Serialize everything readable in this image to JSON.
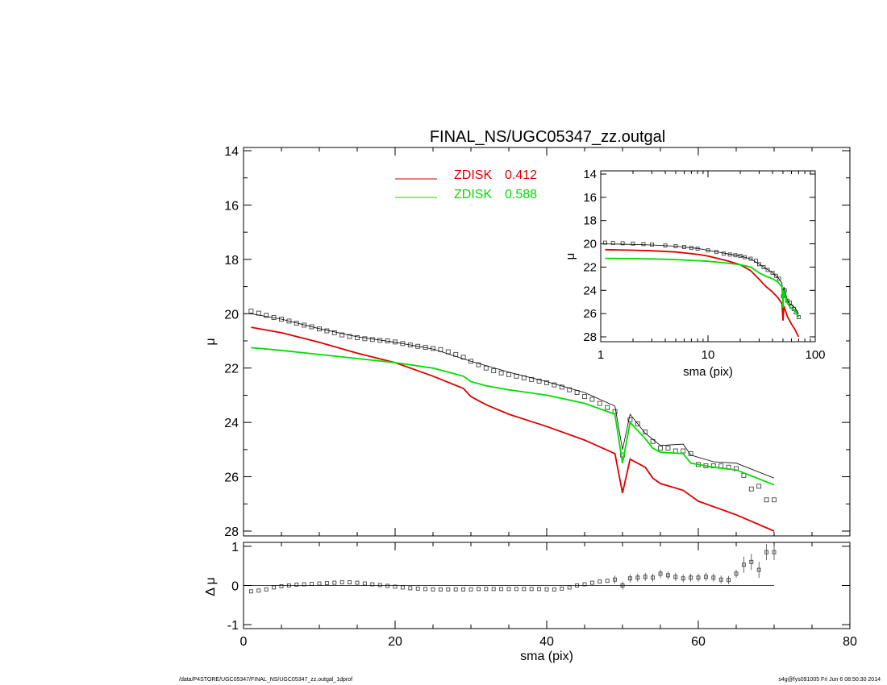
{
  "title": "FINAL_NS/UGC05347_zz.outgal",
  "footer_left": "/data/P4STORE/UGC05347/FINAL_NS/UGC05347_zz.outgal_1dprof",
  "footer_right": "s4g@fys091005  Fri Jun  6 08:50:30 2014",
  "legend": [
    {
      "name": "ZDISK",
      "value": "0.412",
      "color": "#dd0000"
    },
    {
      "name": "ZDISK",
      "value": "0.588",
      "color": "#00dd00"
    }
  ],
  "chart_data": [
    {
      "type": "line",
      "panel": "main",
      "xlabel": "",
      "ylabel": "μ",
      "xlim": [
        0,
        80
      ],
      "ylim": [
        28,
        14
      ],
      "y_inverted": true,
      "xticks": [
        "0",
        "20",
        "40",
        "60",
        "80"
      ],
      "yticks": [
        "14",
        "16",
        "18",
        "20",
        "22",
        "24",
        "26",
        "28"
      ],
      "series": [
        {
          "name": "data",
          "style": "open-square-markers",
          "color": "#444444",
          "x": [
            1,
            2,
            3,
            4,
            5,
            6,
            7,
            8,
            9,
            10,
            11,
            12,
            13,
            14,
            15,
            16,
            17,
            18,
            19,
            20,
            21,
            22,
            23,
            24,
            25,
            26,
            27,
            28,
            29,
            30,
            31,
            32,
            33,
            34,
            35,
            36,
            37,
            38,
            39,
            40,
            41,
            42,
            43,
            44,
            45,
            46,
            47,
            48,
            49,
            50,
            51,
            52,
            53,
            54,
            55,
            56,
            57,
            58,
            59,
            60,
            61,
            62,
            63,
            64,
            65,
            66,
            67,
            68,
            69,
            70
          ],
          "y": [
            19.9,
            19.98,
            20.06,
            20.14,
            20.2,
            20.27,
            20.35,
            20.42,
            20.48,
            20.56,
            20.63,
            20.7,
            20.78,
            20.84,
            20.88,
            20.92,
            20.95,
            20.98,
            21.0,
            21.04,
            21.1,
            21.15,
            21.2,
            21.24,
            21.28,
            21.32,
            21.4,
            21.5,
            21.6,
            21.75,
            21.88,
            22.0,
            22.1,
            22.18,
            22.24,
            22.3,
            22.36,
            22.42,
            22.48,
            22.54,
            22.62,
            22.7,
            22.8,
            22.9,
            23.05,
            23.15,
            23.3,
            23.45,
            23.6,
            25.2,
            23.9,
            24.05,
            24.35,
            24.7,
            24.95,
            24.95,
            25.05,
            25.05,
            25.15,
            25.55,
            25.6,
            25.6,
            25.6,
            25.65,
            25.7,
            25.95,
            26.45,
            26.35,
            26.85,
            26.85
          ]
        },
        {
          "name": "model",
          "style": "thin-line",
          "color": "#000000",
          "x": [
            1,
            5,
            10,
            15,
            20,
            25,
            30,
            35,
            40,
            45,
            49,
            50,
            51,
            53,
            55,
            58,
            59,
            62,
            65,
            70
          ],
          "y": [
            20.0,
            20.2,
            20.55,
            20.85,
            21.05,
            21.3,
            21.75,
            22.15,
            22.5,
            22.9,
            23.4,
            25.0,
            23.7,
            24.4,
            24.85,
            24.8,
            25.2,
            25.45,
            25.5,
            26.05
          ]
        },
        {
          "name": "ZDISK 0.412",
          "style": "line",
          "color": "#dd0000",
          "x": [
            1,
            5,
            10,
            15,
            20,
            25,
            29,
            30,
            32,
            35,
            40,
            45,
            49,
            50,
            51,
            53,
            54,
            55,
            58,
            59,
            60,
            62,
            65,
            70
          ],
          "y": [
            20.5,
            20.7,
            21.05,
            21.45,
            21.8,
            22.3,
            22.75,
            23.05,
            23.35,
            23.7,
            24.15,
            24.65,
            25.15,
            26.6,
            25.35,
            25.65,
            26.05,
            26.25,
            26.5,
            26.7,
            26.9,
            27.1,
            27.4,
            28.0
          ]
        },
        {
          "name": "ZDISK 0.588",
          "style": "line",
          "color": "#00dd00",
          "x": [
            1,
            5,
            10,
            15,
            20,
            25,
            29,
            30,
            32,
            35,
            40,
            45,
            49,
            50,
            51,
            53,
            54,
            55,
            58,
            59,
            62,
            65,
            70
          ],
          "y": [
            21.25,
            21.35,
            21.5,
            21.65,
            21.8,
            22.0,
            22.3,
            22.5,
            22.65,
            22.8,
            23.0,
            23.3,
            23.7,
            25.5,
            24.0,
            24.6,
            24.95,
            25.1,
            25.15,
            25.5,
            25.65,
            25.75,
            26.3
          ]
        }
      ]
    },
    {
      "type": "scatter",
      "panel": "residual",
      "xlabel": "sma (pix)",
      "ylabel": "Δ μ",
      "xlim": [
        0,
        80
      ],
      "ylim": [
        -1.1,
        1.1
      ],
      "xticks": [
        "0",
        "20",
        "40",
        "60",
        "80"
      ],
      "yticks": [
        "-1",
        "0",
        "1"
      ],
      "series": [
        {
          "name": "residual",
          "style": "open-square-markers",
          "color": "#444444",
          "x": [
            1,
            2,
            3,
            4,
            5,
            6,
            7,
            8,
            9,
            10,
            11,
            12,
            13,
            14,
            15,
            16,
            17,
            18,
            19,
            20,
            21,
            22,
            23,
            24,
            25,
            26,
            27,
            28,
            29,
            30,
            31,
            32,
            33,
            34,
            35,
            36,
            37,
            38,
            39,
            40,
            41,
            42,
            43,
            44,
            45,
            46,
            47,
            48,
            49,
            50,
            51,
            52,
            53,
            54,
            55,
            56,
            57,
            58,
            59,
            60,
            61,
            62,
            63,
            64,
            65,
            66,
            67,
            68,
            69,
            70
          ],
          "y": [
            -0.15,
            -0.13,
            -0.1,
            -0.05,
            -0.02,
            0.0,
            0.02,
            0.03,
            0.04,
            0.05,
            0.06,
            0.07,
            0.08,
            0.08,
            0.07,
            0.05,
            0.03,
            0.01,
            -0.01,
            -0.03,
            -0.05,
            -0.07,
            -0.08,
            -0.09,
            -0.1,
            -0.1,
            -0.1,
            -0.1,
            -0.1,
            -0.1,
            -0.09,
            -0.09,
            -0.09,
            -0.09,
            -0.09,
            -0.09,
            -0.09,
            -0.09,
            -0.09,
            -0.1,
            -0.1,
            -0.08,
            -0.05,
            0.0,
            0.03,
            0.07,
            0.1,
            0.12,
            0.15,
            0.0,
            0.18,
            0.2,
            0.22,
            0.2,
            0.3,
            0.26,
            0.22,
            0.18,
            0.2,
            0.2,
            0.22,
            0.2,
            0.15,
            0.14,
            0.3,
            0.53,
            0.6,
            0.4,
            0.85,
            0.85
          ]
        },
        {
          "name": "zero",
          "style": "thin-line",
          "color": "#000000",
          "x": [
            1,
            70
          ],
          "y": [
            0,
            0
          ]
        }
      ]
    },
    {
      "type": "line",
      "panel": "inset",
      "xlabel": "sma (pix)",
      "ylabel": "μ",
      "x_scale": "log",
      "xlim": [
        1,
        100
      ],
      "ylim": [
        28,
        14
      ],
      "y_inverted": true,
      "xticks": [
        "1",
        "10",
        "100"
      ],
      "yticks": [
        "14",
        "16",
        "18",
        "20",
        "22",
        "24",
        "26",
        "28"
      ],
      "series": [
        {
          "name": "data",
          "style": "open-square-markers",
          "color": "#444444",
          "x": [
            1.1,
            1.3,
            1.6,
            2,
            2.5,
            3,
            4,
            5,
            6,
            7,
            8,
            10,
            12,
            14,
            16,
            18,
            20,
            22,
            25,
            28,
            30,
            33,
            36,
            40,
            43,
            46,
            50,
            52,
            55,
            58,
            60,
            63,
            66,
            70
          ],
          "y": [
            19.9,
            19.92,
            19.95,
            19.98,
            20.02,
            20.06,
            20.14,
            20.2,
            20.27,
            20.35,
            20.42,
            20.56,
            20.7,
            20.84,
            20.92,
            20.98,
            21.04,
            21.15,
            21.28,
            21.45,
            21.75,
            22.0,
            22.25,
            22.5,
            22.75,
            23.0,
            24.5,
            24.0,
            24.9,
            25.05,
            25.4,
            25.6,
            25.9,
            26.3
          ]
        },
        {
          "name": "model",
          "style": "thin-line",
          "color": "#000000",
          "x": [
            1.1,
            2,
            3,
            5,
            8,
            10,
            15,
            20,
            25,
            30,
            35,
            40,
            45,
            49,
            50,
            51,
            55,
            59,
            65,
            70
          ],
          "y": [
            20.0,
            20.05,
            20.1,
            20.2,
            20.4,
            20.55,
            20.85,
            21.05,
            21.3,
            21.75,
            22.15,
            22.5,
            22.9,
            23.4,
            25.0,
            23.7,
            24.85,
            25.2,
            25.5,
            26.05
          ]
        },
        {
          "name": "ZDISK 0.412",
          "style": "line",
          "color": "#dd0000",
          "x": [
            1.1,
            2,
            3,
            5,
            8,
            10,
            15,
            20,
            25,
            30,
            35,
            40,
            45,
            49,
            50,
            51,
            55,
            60,
            65,
            70
          ],
          "y": [
            20.5,
            20.55,
            20.6,
            20.7,
            20.9,
            21.05,
            21.45,
            21.8,
            22.3,
            23.05,
            23.7,
            24.15,
            24.65,
            25.15,
            26.6,
            25.35,
            26.25,
            26.9,
            27.4,
            28.0
          ]
        },
        {
          "name": "ZDISK 0.588",
          "style": "line",
          "color": "#00dd00",
          "x": [
            1.1,
            2,
            3,
            5,
            8,
            10,
            15,
            20,
            25,
            30,
            35,
            40,
            45,
            49,
            50,
            51,
            55,
            59,
            65,
            70
          ],
          "y": [
            21.25,
            21.27,
            21.3,
            21.35,
            21.45,
            21.5,
            21.65,
            21.8,
            22.0,
            22.5,
            22.8,
            23.0,
            23.3,
            23.7,
            25.5,
            24.0,
            25.1,
            25.5,
            25.75,
            26.3
          ]
        }
      ]
    }
  ]
}
